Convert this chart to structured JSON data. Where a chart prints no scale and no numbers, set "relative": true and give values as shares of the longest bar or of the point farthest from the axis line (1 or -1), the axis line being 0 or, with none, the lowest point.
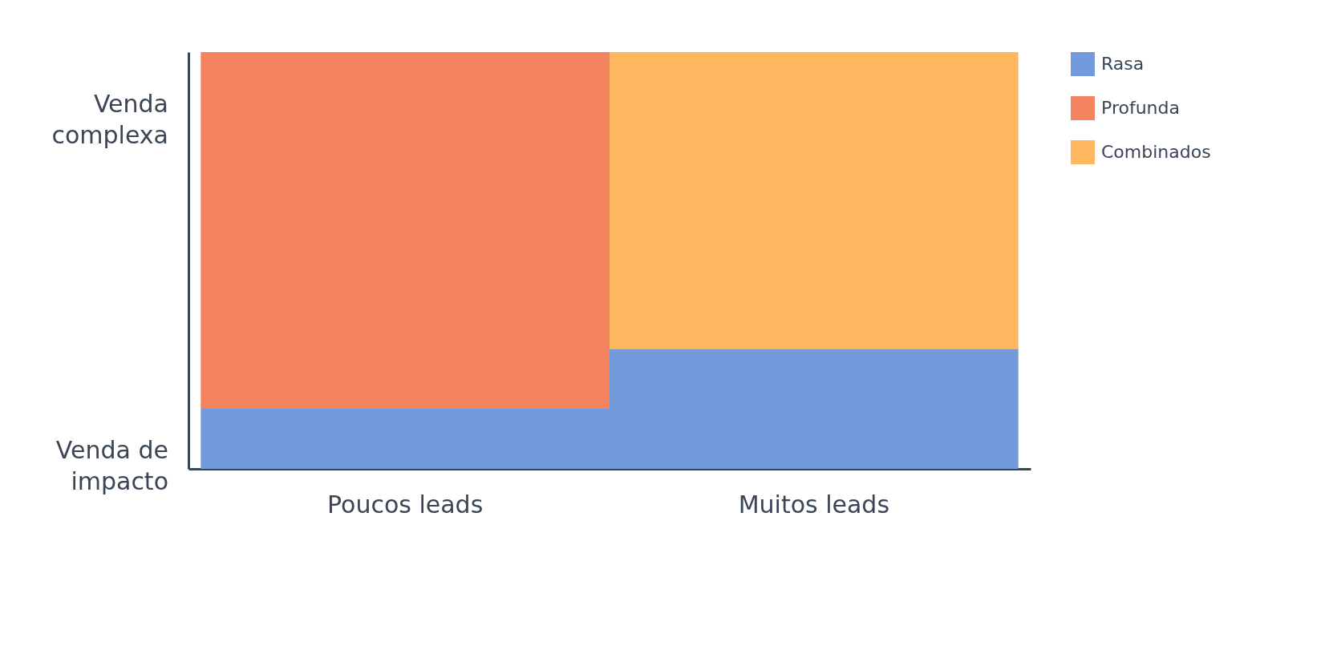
{
  "chart_data": {
    "type": "bar",
    "relative": true,
    "stacked": true,
    "categories": [
      "Poucos leads",
      "Muitos leads"
    ],
    "series": [
      {
        "name": "Rasa",
        "color": "#739bdb",
        "values": [
          0.144,
          0.288
        ]
      },
      {
        "name": "Profunda",
        "color": "#f4845f",
        "values": [
          0.856,
          null
        ]
      },
      {
        "name": "Combinados",
        "color": "#ffb760",
        "values": [
          null,
          0.712
        ]
      }
    ],
    "annotations": [
      "Venda complexa",
      "Venda de impacto"
    ],
    "legend": "right",
    "grid": false
  }
}
